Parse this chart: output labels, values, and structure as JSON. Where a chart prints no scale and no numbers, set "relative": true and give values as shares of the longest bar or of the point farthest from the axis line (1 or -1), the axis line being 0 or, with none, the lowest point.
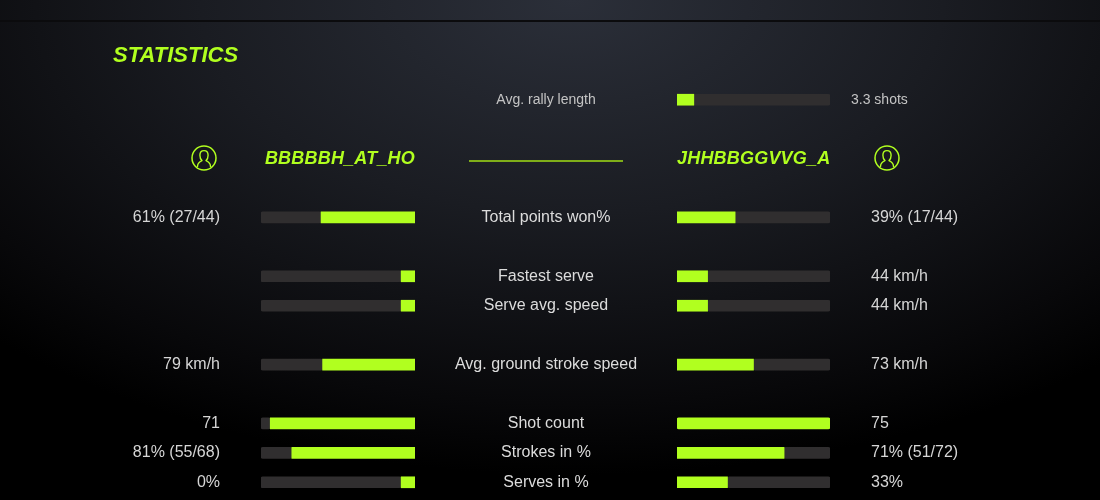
{
  "chart_data": [
    {
      "type": "bar",
      "title": "STATISTICS",
      "orientation": "horizontal",
      "stacked": true,
      "relative": true,
      "categories": [
        "Avg. rally length",
        null,
        null,
        null,
        "Total points won%",
        null,
        "Fastest serve",
        "Serve avg. speed",
        null,
        "Avg. ground stroke speed",
        null,
        "Shot count",
        "Strokes in %",
        "Serves in %"
      ],
      "series": [
        {
          "name": "BBBBBH_AT_HO",
          "color": "#b1ff1f",
          "values": [
            null,
            null,
            null,
            null,
            -0.61,
            null,
            -0.09,
            -0.09,
            null,
            -0.6,
            null,
            -0.94,
            -0.8,
            -0.09
          ]
        },
        {
          "color": "#302e2f",
          "values": [
            null,
            null,
            null,
            null,
            -0.39,
            null,
            -0.91,
            -0.91,
            null,
            -0.4,
            null,
            -0.06,
            -0.2,
            -0.91
          ]
        }
      ],
      "annotations": [
        "61% (27/44)",
        "79 km/h",
        "71",
        "81% (55/68)",
        "0%"
      ]
    },
    {
      "type": "bar",
      "orientation": "horizontal",
      "stacked": true,
      "relative": true,
      "categories": [
        null,
        null,
        null,
        null,
        null,
        null,
        null,
        null,
        null,
        null,
        null,
        null,
        null,
        null
      ],
      "series": [
        {
          "name": "JHHBBGGVVG_A",
          "color": "#b1ff1f",
          "values": [
            0.11,
            null,
            null,
            null,
            0.38,
            null,
            0.2,
            0.2,
            null,
            0.5,
            null,
            1,
            0.7,
            0.33
          ]
        },
        {
          "color": "#302e2f",
          "values": [
            0.89,
            null,
            null,
            null,
            0.62,
            null,
            0.8,
            0.8,
            null,
            0.5,
            null,
            0,
            0.3,
            0.67
          ]
        }
      ],
      "annotations": [
        "3.3 shots",
        "39% (17/44)",
        "44 km/h",
        "44 km/h",
        "73 km/h",
        "75",
        "71% (51/72)",
        "33%"
      ]
    }
  ]
}
